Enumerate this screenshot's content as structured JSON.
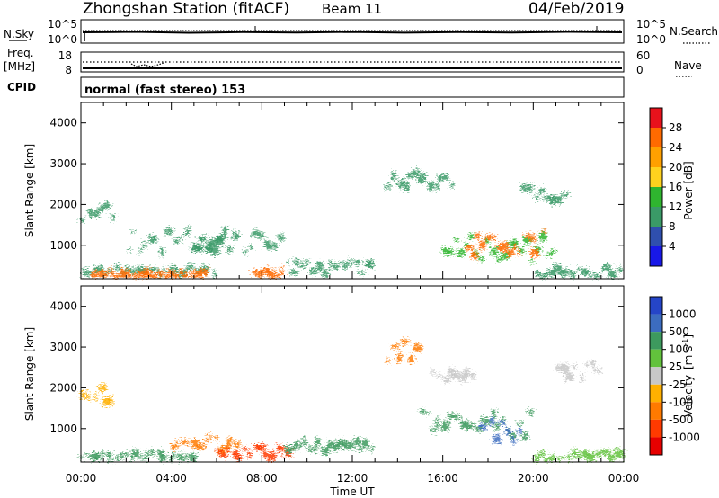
{
  "header": {
    "station_title": "Zhongshan Station (fitACF)",
    "beam": "Beam 11",
    "date": "04/Feb/2019"
  },
  "noise_panel": {
    "left_label": "N.Sky",
    "right_label": "N.Search",
    "left_ticks": [
      "10^5",
      "10^0"
    ],
    "right_ticks": [
      "10^5",
      "10^0"
    ]
  },
  "freq_panel": {
    "left_label_1": "Freq.",
    "left_label_2": "[MHz]",
    "left_ticks": [
      "18",
      "8"
    ],
    "right_label": "Nave",
    "right_ticks": [
      "60",
      "0"
    ]
  },
  "cpid": {
    "label": "CPID",
    "mode_text": "normal (fast stereo) 153"
  },
  "axes": {
    "ylabel": "Slant Range [km]",
    "yticks": [
      "4000",
      "3000",
      "2000",
      "1000"
    ],
    "xticks": [
      "00:00",
      "04:00",
      "08:00",
      "12:00",
      "16:00",
      "20:00",
      "00:00"
    ],
    "xlabel": "Time UT"
  },
  "power_colorbar": {
    "label": "Power [dB]",
    "ticks": [
      "28",
      "24",
      "20",
      "16",
      "12",
      "8",
      "4"
    ],
    "colors": [
      "#e8121c",
      "#ff6a00",
      "#ffa000",
      "#ffd21e",
      "#2fb52f",
      "#3a9a67",
      "#2f4fae",
      "#1818e8"
    ]
  },
  "velocity_colorbar": {
    "label_main": "Velocity",
    "label_unit": "[m s",
    "label_exp": "-1",
    "label_close": "]",
    "ticks": [
      "1000",
      "500",
      "100",
      "25",
      "-25",
      "-100",
      "-500",
      "-1000"
    ],
    "colors": [
      "#2545c8",
      "#3c6cc0",
      "#3d9a5e",
      "#62c23c",
      "#c8c8c8",
      "#ffb000",
      "#ff7a00",
      "#ff3a00",
      "#e60000"
    ]
  },
  "chart_data": [
    {
      "type": "heatmap",
      "title": "Power [dB]",
      "xlabel": "Time UT",
      "ylabel": "Slant Range [km]",
      "xlim": [
        0,
        24
      ],
      "ylim": [
        180,
        4500
      ],
      "colorbar_range": [
        0,
        30
      ],
      "series": [
        {
          "values": [
            [
              0,
              1.5,
              1800,
              2.0,
              8
            ],
            [
              0,
              6,
              380,
              1.0,
              10
            ],
            [
              0.5,
              5.5,
              250,
              1.0,
              24
            ],
            [
              2,
              6.5,
              1100,
              3.0,
              8
            ],
            [
              5,
              9,
              1050,
              2.5,
              9
            ],
            [
              7.5,
              9,
              280,
              1.2,
              24
            ],
            [
              9,
              13,
              450,
              1.5,
              9
            ],
            [
              13.5,
              16.5,
              2600,
              2.5,
              9
            ],
            [
              16,
              21,
              900,
              3.5,
              14
            ],
            [
              17,
              20.5,
              1050,
              3.5,
              24
            ],
            [
              20,
              24,
              300,
              1.5,
              10
            ],
            [
              19.5,
              21.5,
              2300,
              2.0,
              8
            ]
          ]
        }
      ]
    },
    {
      "type": "heatmap",
      "title": "Velocity [m s-1]",
      "xlabel": "Time UT",
      "ylabel": "Slant Range [km]",
      "xlim": [
        0,
        24
      ],
      "ylim": [
        180,
        4500
      ],
      "colorbar_range": [
        -1000,
        1000
      ],
      "series": [
        {
          "values": [
            [
              0,
              1.5,
              1800,
              2.0,
              -30
            ],
            [
              0,
              5,
              300,
              1.2,
              100
            ],
            [
              4,
              7,
              650,
              2.0,
              -300
            ],
            [
              6,
              9.5,
              400,
              1.5,
              -600
            ],
            [
              9,
              13,
              550,
              1.5,
              100
            ],
            [
              13.5,
              15,
              2900,
              2.5,
              -200
            ],
            [
              15.5,
              17.5,
              2400,
              2.5,
              20
            ],
            [
              15,
              20,
              1100,
              3.5,
              150
            ],
            [
              17.5,
              19.5,
              1000,
              3.0,
              800
            ],
            [
              20,
              24,
              300,
              1.5,
              80
            ],
            [
              21,
              23,
              2400,
              2.0,
              -20
            ]
          ]
        }
      ]
    }
  ]
}
